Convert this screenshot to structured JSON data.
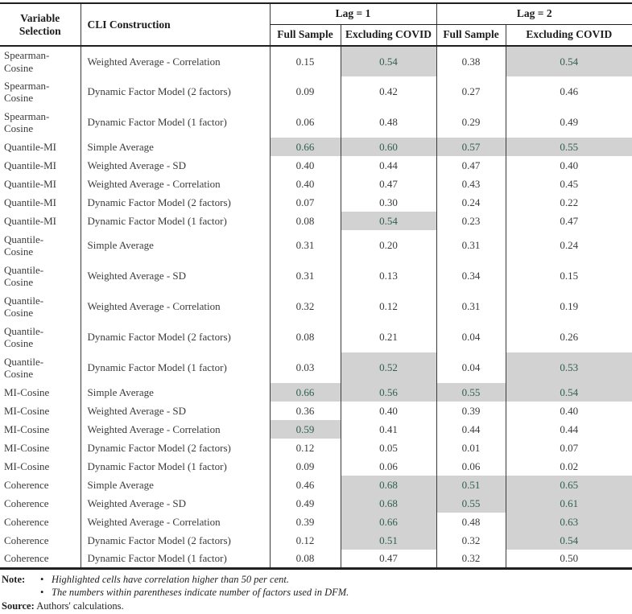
{
  "colors": {
    "highlight_bg": "#d2d2d2",
    "highlight_text": "#2e5f4e"
  },
  "table": {
    "column_headers": {
      "variable_selection": "Variable Selection",
      "cli_construction": "CLI Construction",
      "lag_groups": [
        {
          "label": "Lag = 1",
          "sub": [
            "Full Sample",
            "Excluding COVID"
          ]
        },
        {
          "label": "Lag = 2",
          "sub": [
            "Full Sample",
            "Excluding COVID"
          ]
        }
      ]
    },
    "rows": [
      {
        "variable": "Spearman-Cosine",
        "construction": "Weighted Average - Correlation",
        "values": [
          "0.15",
          "0.54",
          "0.38",
          "0.54"
        ],
        "highlighted": [
          false,
          true,
          false,
          true
        ],
        "tall": true
      },
      {
        "variable": "Spearman-Cosine",
        "construction": "Dynamic Factor Model (2 factors)",
        "values": [
          "0.09",
          "0.42",
          "0.27",
          "0.46"
        ],
        "highlighted": [
          false,
          false,
          false,
          false
        ],
        "tall": true
      },
      {
        "variable": "Spearman-Cosine",
        "construction": "Dynamic Factor Model (1 factor)",
        "values": [
          "0.06",
          "0.48",
          "0.29",
          "0.49"
        ],
        "highlighted": [
          false,
          false,
          false,
          false
        ],
        "tall": true
      },
      {
        "variable": "Quantile-MI",
        "construction": "Simple Average",
        "values": [
          "0.66",
          "0.60",
          "0.57",
          "0.55"
        ],
        "highlighted": [
          true,
          true,
          true,
          true
        ],
        "tall": false
      },
      {
        "variable": "Quantile-MI",
        "construction": "Weighted Average - SD",
        "values": [
          "0.40",
          "0.44",
          "0.47",
          "0.40"
        ],
        "highlighted": [
          false,
          false,
          false,
          false
        ],
        "tall": false
      },
      {
        "variable": "Quantile-MI",
        "construction": "Weighted Average - Correlation",
        "values": [
          "0.40",
          "0.47",
          "0.43",
          "0.45"
        ],
        "highlighted": [
          false,
          false,
          false,
          false
        ],
        "tall": false
      },
      {
        "variable": "Quantile-MI",
        "construction": "Dynamic Factor Model (2 factors)",
        "values": [
          "0.07",
          "0.30",
          "0.24",
          "0.22"
        ],
        "highlighted": [
          false,
          false,
          false,
          false
        ],
        "tall": false
      },
      {
        "variable": "Quantile-MI",
        "construction": "Dynamic Factor Model (1 factor)",
        "values": [
          "0.08",
          "0.54",
          "0.23",
          "0.47"
        ],
        "highlighted": [
          false,
          true,
          false,
          false
        ],
        "tall": false
      },
      {
        "variable": "Quantile-Cosine",
        "construction": "Simple Average",
        "values": [
          "0.31",
          "0.20",
          "0.31",
          "0.24"
        ],
        "highlighted": [
          false,
          false,
          false,
          false
        ],
        "tall": true
      },
      {
        "variable": "Quantile-Cosine",
        "construction": "Weighted Average - SD",
        "values": [
          "0.31",
          "0.13",
          "0.34",
          "0.15"
        ],
        "highlighted": [
          false,
          false,
          false,
          false
        ],
        "tall": true
      },
      {
        "variable": "Quantile-Cosine",
        "construction": "Weighted Average - Correlation",
        "values": [
          "0.32",
          "0.12",
          "0.31",
          "0.19"
        ],
        "highlighted": [
          false,
          false,
          false,
          false
        ],
        "tall": true
      },
      {
        "variable": "Quantile-Cosine",
        "construction": "Dynamic Factor Model (2 factors)",
        "values": [
          "0.08",
          "0.21",
          "0.04",
          "0.26"
        ],
        "highlighted": [
          false,
          false,
          false,
          false
        ],
        "tall": true
      },
      {
        "variable": "Quantile-Cosine",
        "construction": "Dynamic Factor Model (1 factor)",
        "values": [
          "0.03",
          "0.52",
          "0.04",
          "0.53"
        ],
        "highlighted": [
          false,
          true,
          false,
          true
        ],
        "tall": true
      },
      {
        "variable": "MI-Cosine",
        "construction": "Simple Average",
        "values": [
          "0.66",
          "0.56",
          "0.55",
          "0.54"
        ],
        "highlighted": [
          true,
          true,
          true,
          true
        ],
        "tall": false
      },
      {
        "variable": "MI-Cosine",
        "construction": "Weighted Average - SD",
        "values": [
          "0.36",
          "0.40",
          "0.39",
          "0.40"
        ],
        "highlighted": [
          false,
          false,
          false,
          false
        ],
        "tall": false
      },
      {
        "variable": "MI-Cosine",
        "construction": "Weighted Average - Correlation",
        "values": [
          "0.59",
          "0.41",
          "0.44",
          "0.44"
        ],
        "highlighted": [
          true,
          false,
          false,
          false
        ],
        "tall": false
      },
      {
        "variable": "MI-Cosine",
        "construction": "Dynamic Factor Model (2 factors)",
        "values": [
          "0.12",
          "0.05",
          "0.01",
          "0.07"
        ],
        "highlighted": [
          false,
          false,
          false,
          false
        ],
        "tall": false
      },
      {
        "variable": "MI-Cosine",
        "construction": "Dynamic Factor Model (1 factor)",
        "values": [
          "0.09",
          "0.06",
          "0.06",
          "0.02"
        ],
        "highlighted": [
          false,
          false,
          false,
          false
        ],
        "tall": false
      },
      {
        "variable": "Coherence",
        "construction": "Simple Average",
        "values": [
          "0.46",
          "0.68",
          "0.51",
          "0.65"
        ],
        "highlighted": [
          false,
          true,
          true,
          true
        ],
        "tall": false
      },
      {
        "variable": "Coherence",
        "construction": "Weighted Average - SD",
        "values": [
          "0.49",
          "0.68",
          "0.55",
          "0.61"
        ],
        "highlighted": [
          false,
          true,
          true,
          true
        ],
        "tall": false
      },
      {
        "variable": "Coherence",
        "construction": "Weighted Average - Correlation",
        "values": [
          "0.39",
          "0.66",
          "0.48",
          "0.63"
        ],
        "highlighted": [
          false,
          true,
          false,
          true
        ],
        "tall": false
      },
      {
        "variable": "Coherence",
        "construction": "Dynamic Factor Model (2 factors)",
        "values": [
          "0.12",
          "0.51",
          "0.32",
          "0.54"
        ],
        "highlighted": [
          false,
          true,
          false,
          true
        ],
        "tall": false
      },
      {
        "variable": "Coherence",
        "construction": "Dynamic Factor Model (1 factor)",
        "values": [
          "0.08",
          "0.47",
          "0.32",
          "0.50"
        ],
        "highlighted": [
          false,
          false,
          false,
          false
        ],
        "tall": false
      }
    ]
  },
  "notes": {
    "note_label": "Note:",
    "bullets": [
      "Highlighted cells have correlation higher than 50 per cent.",
      "The numbers within parentheses indicate number of factors used in DFM."
    ],
    "source_label": "Source:",
    "source_text": "Authors' calculations."
  }
}
